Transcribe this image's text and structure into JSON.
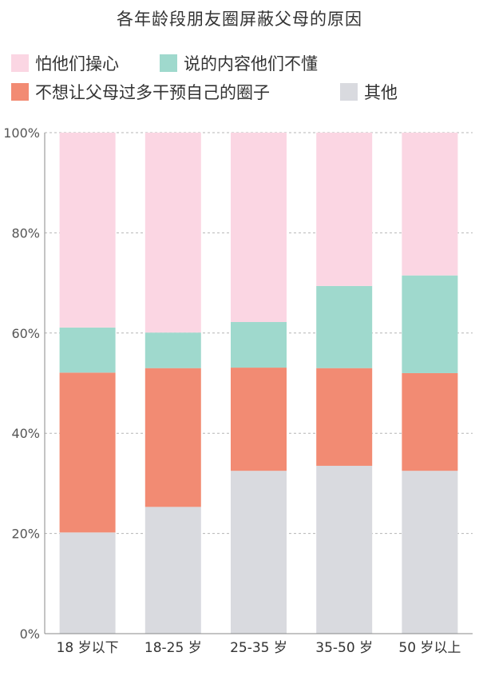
{
  "chart_data": {
    "type": "bar",
    "stacked": true,
    "title": "各年龄段朋友圈屏蔽父母的原因",
    "xlabel": "",
    "ylabel": "",
    "ylim": [
      0,
      100
    ],
    "yticks": [
      "0%",
      "20%",
      "40%",
      "60%",
      "80%",
      "100%"
    ],
    "grid": true,
    "legend_position": "top",
    "categories": [
      "18 岁以下",
      "18-25 岁",
      "25-35 岁",
      "35-50 岁",
      "50 岁以上"
    ],
    "series": [
      {
        "name": "其他",
        "color": "#d9dadf",
        "values": [
          20.2,
          25.3,
          32.5,
          33.5,
          32.5
        ]
      },
      {
        "name": "不想让父母过多干预自己的圈子",
        "color": "#f28b73",
        "values": [
          31.9,
          27.7,
          20.6,
          19.5,
          19.5
        ]
      },
      {
        "name": "说的内容他们不懂",
        "color": "#9fd9cd",
        "values": [
          9.0,
          7.1,
          9.1,
          16.4,
          19.5
        ]
      },
      {
        "name": "怕他们操心",
        "color": "#fbd6e3",
        "values": [
          38.9,
          39.9,
          37.8,
          30.6,
          28.5
        ]
      }
    ]
  },
  "legend": [
    {
      "label": "怕他们操心",
      "color": "#fbd6e3"
    },
    {
      "label": "说的内容他们不懂",
      "color": "#9fd9cd"
    },
    {
      "label": "不想让父母过多干预自己的圈子",
      "color": "#f28b73"
    },
    {
      "label": "其他",
      "color": "#d9dadf"
    }
  ]
}
